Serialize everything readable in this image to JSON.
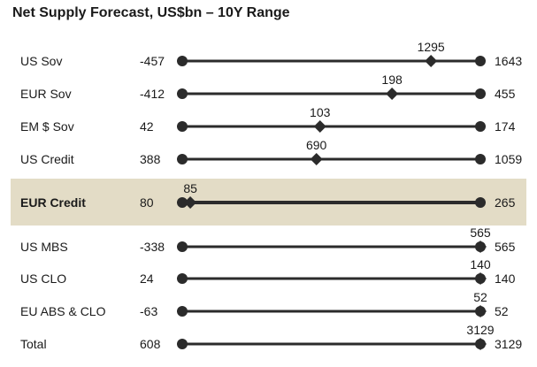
{
  "chart_data": {
    "type": "range",
    "title": "Net Supply Forecast, US$bn – 10Y Range",
    "highlight_color": "#e3dcc6",
    "line_color": "#2b2b2b",
    "rows": [
      {
        "name": "US Sov",
        "min": -457,
        "max": 1643,
        "forecast": 1295,
        "min_label": "-457",
        "max_label": "1643",
        "forecast_label": "1295",
        "highlight": false
      },
      {
        "name": "EUR Sov",
        "min": -412,
        "max": 455,
        "forecast": 198,
        "min_label": "-412",
        "max_label": "455",
        "forecast_label": "198",
        "highlight": false
      },
      {
        "name": "EM $ Sov",
        "min": 42,
        "max": 174,
        "forecast": 103,
        "min_label": "42",
        "max_label": "174",
        "forecast_label": "103",
        "highlight": false
      },
      {
        "name": "US Credit",
        "min": 388,
        "max": 1059,
        "forecast": 690,
        "min_label": "388",
        "max_label": "1059",
        "forecast_label": "690",
        "highlight": false
      },
      {
        "name": "EUR Credit",
        "min": 80,
        "max": 265,
        "forecast": 85,
        "min_label": "80",
        "max_label": "265",
        "forecast_label": "85",
        "highlight": true
      },
      {
        "name": "US MBS",
        "min": -338,
        "max": 565,
        "forecast": 565,
        "min_label": "-338",
        "max_label": "565",
        "forecast_label": "565",
        "highlight": false
      },
      {
        "name": "US CLO",
        "min": 24,
        "max": 140,
        "forecast": 140,
        "min_label": "24",
        "max_label": "140",
        "forecast_label": "140",
        "highlight": false
      },
      {
        "name": "EU ABS & CLO",
        "min": -63,
        "max": 52,
        "forecast": 52,
        "min_label": "-63",
        "max_label": "52",
        "forecast_label": "52",
        "highlight": false
      },
      {
        "name": "Total",
        "min": 608,
        "max": 3129,
        "forecast": 3129,
        "min_label": "608",
        "max_label": "3129",
        "forecast_label": "3129",
        "highlight": false
      }
    ]
  }
}
